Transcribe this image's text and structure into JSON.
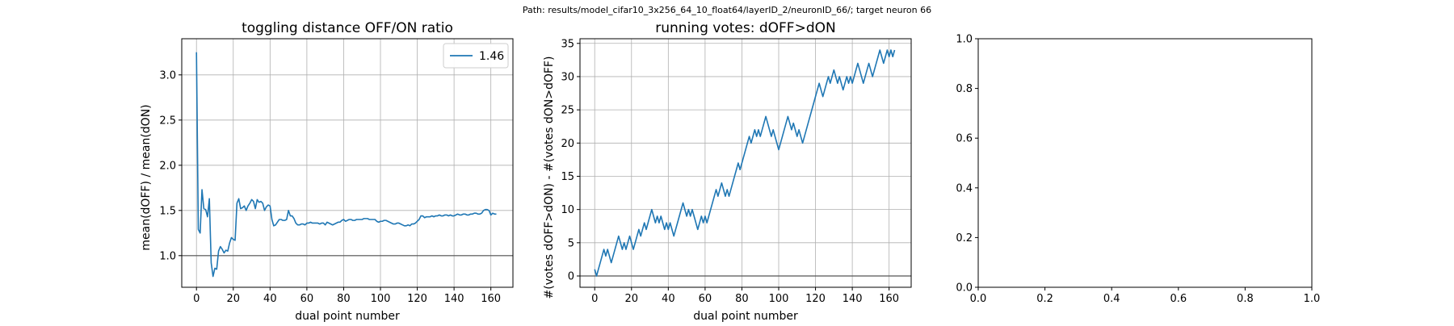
{
  "figure": {
    "suptitle": "Path: results/model_cifar10_3x256_64_10_float64/layerID_2/neuronID_66/; target neuron 66"
  },
  "chart_data": [
    {
      "type": "line",
      "title": "toggling distance OFF/ON ratio",
      "xlabel": "dual point number",
      "ylabel": "mean(dOFF) / mean(dON)",
      "xlim": [
        -8,
        172
      ],
      "ylim": [
        0.65,
        3.4
      ],
      "xticks": [
        0,
        20,
        40,
        60,
        80,
        100,
        120,
        140,
        160
      ],
      "yticks": [
        1.0,
        1.5,
        2.0,
        2.5,
        3.0
      ],
      "ytick_labels": [
        "1.0",
        "1.5",
        "2.0",
        "2.5",
        "3.0"
      ],
      "grid": true,
      "legend_position": "top-right",
      "reference_line": 1.0,
      "series": [
        {
          "name": "1.46",
          "color": "#1f77b4",
          "x": [
            0,
            1,
            2,
            3,
            4,
            5,
            6,
            7,
            8,
            9,
            10,
            11,
            12,
            13,
            14,
            15,
            16,
            17,
            18,
            19,
            20,
            21,
            22,
            23,
            24,
            25,
            26,
            27,
            28,
            29,
            30,
            31,
            32,
            33,
            34,
            35,
            36,
            37,
            38,
            39,
            40,
            41,
            42,
            43,
            44,
            45,
            46,
            47,
            48,
            49,
            50,
            51,
            52,
            53,
            54,
            55,
            56,
            57,
            58,
            59,
            60,
            61,
            62,
            63,
            64,
            65,
            66,
            67,
            68,
            69,
            70,
            71,
            72,
            73,
            74,
            75,
            76,
            77,
            78,
            79,
            80,
            81,
            82,
            83,
            84,
            85,
            86,
            87,
            88,
            89,
            90,
            91,
            92,
            93,
            94,
            95,
            96,
            97,
            98,
            99,
            100,
            101,
            102,
            103,
            104,
            105,
            106,
            107,
            108,
            109,
            110,
            111,
            112,
            113,
            114,
            115,
            116,
            117,
            118,
            119,
            120,
            121,
            122,
            123,
            124,
            125,
            126,
            127,
            128,
            129,
            130,
            131,
            132,
            133,
            134,
            135,
            136,
            137,
            138,
            139,
            140,
            141,
            142,
            143,
            144,
            145,
            146,
            147,
            148,
            149,
            150,
            151,
            152,
            153,
            154,
            155,
            156,
            157,
            158,
            159,
            160,
            161,
            162,
            163
          ],
          "y": [
            3.25,
            1.29,
            1.25,
            1.73,
            1.52,
            1.51,
            1.43,
            1.63,
            0.92,
            0.77,
            0.86,
            0.85,
            1.05,
            1.1,
            1.07,
            1.03,
            1.06,
            1.05,
            1.14,
            1.2,
            1.18,
            1.17,
            1.58,
            1.63,
            1.52,
            1.53,
            1.55,
            1.5,
            1.55,
            1.58,
            1.62,
            1.6,
            1.52,
            1.62,
            1.59,
            1.6,
            1.58,
            1.5,
            1.54,
            1.56,
            1.55,
            1.4,
            1.33,
            1.34,
            1.37,
            1.4,
            1.4,
            1.39,
            1.39,
            1.4,
            1.5,
            1.44,
            1.44,
            1.41,
            1.36,
            1.34,
            1.34,
            1.35,
            1.35,
            1.34,
            1.36,
            1.36,
            1.37,
            1.36,
            1.36,
            1.36,
            1.36,
            1.35,
            1.36,
            1.36,
            1.34,
            1.37,
            1.36,
            1.35,
            1.34,
            1.35,
            1.36,
            1.37,
            1.37,
            1.39,
            1.4,
            1.38,
            1.39,
            1.4,
            1.4,
            1.39,
            1.39,
            1.4,
            1.4,
            1.4,
            1.4,
            1.41,
            1.41,
            1.41,
            1.4,
            1.4,
            1.4,
            1.4,
            1.38,
            1.37,
            1.38,
            1.38,
            1.39,
            1.39,
            1.38,
            1.37,
            1.36,
            1.35,
            1.35,
            1.36,
            1.36,
            1.35,
            1.34,
            1.33,
            1.33,
            1.34,
            1.33,
            1.35,
            1.35,
            1.36,
            1.38,
            1.4,
            1.44,
            1.44,
            1.42,
            1.43,
            1.43,
            1.43,
            1.44,
            1.43,
            1.44,
            1.44,
            1.45,
            1.44,
            1.44,
            1.45,
            1.45,
            1.44,
            1.45,
            1.44,
            1.44,
            1.45,
            1.46,
            1.45,
            1.45,
            1.46,
            1.46,
            1.45,
            1.45,
            1.46,
            1.46,
            1.47,
            1.47,
            1.46,
            1.46,
            1.47,
            1.5,
            1.51,
            1.51,
            1.5,
            1.45,
            1.47,
            1.46,
            1.46
          ]
        }
      ]
    },
    {
      "type": "line",
      "title": "running votes: dOFF>dON",
      "xlabel": "dual point number",
      "ylabel": "#(votes dOFF>dON) - #(votes dON>dOFF)",
      "xlim": [
        -8,
        172
      ],
      "ylim": [
        -1.7,
        35.7
      ],
      "xticks": [
        0,
        20,
        40,
        60,
        80,
        100,
        120,
        140,
        160
      ],
      "yticks": [
        0,
        5,
        10,
        15,
        20,
        25,
        30,
        35
      ],
      "ytick_labels": [
        "0",
        "5",
        "10",
        "15",
        "20",
        "25",
        "30",
        "35"
      ],
      "grid": true,
      "reference_line": 0,
      "series": [
        {
          "color": "#1f77b4",
          "x": [
            0,
            1,
            2,
            3,
            4,
            5,
            6,
            7,
            8,
            9,
            10,
            11,
            12,
            13,
            14,
            15,
            16,
            17,
            18,
            19,
            20,
            21,
            22,
            23,
            24,
            25,
            26,
            27,
            28,
            29,
            30,
            31,
            32,
            33,
            34,
            35,
            36,
            37,
            38,
            39,
            40,
            41,
            42,
            43,
            44,
            45,
            46,
            47,
            48,
            49,
            50,
            51,
            52,
            53,
            54,
            55,
            56,
            57,
            58,
            59,
            60,
            61,
            62,
            63,
            64,
            65,
            66,
            67,
            68,
            69,
            70,
            71,
            72,
            73,
            74,
            75,
            76,
            77,
            78,
            79,
            80,
            81,
            82,
            83,
            84,
            85,
            86,
            87,
            88,
            89,
            90,
            91,
            92,
            93,
            94,
            95,
            96,
            97,
            98,
            99,
            100,
            101,
            102,
            103,
            104,
            105,
            106,
            107,
            108,
            109,
            110,
            111,
            112,
            113,
            114,
            115,
            116,
            117,
            118,
            119,
            120,
            121,
            122,
            123,
            124,
            125,
            126,
            127,
            128,
            129,
            130,
            131,
            132,
            133,
            134,
            135,
            136,
            137,
            138,
            139,
            140,
            141,
            142,
            143,
            144,
            145,
            146,
            147,
            148,
            149,
            150,
            151,
            152,
            153,
            154,
            155,
            156,
            157,
            158,
            159,
            160,
            161,
            162,
            163
          ],
          "y": [
            1,
            0,
            1,
            2,
            3,
            4,
            3,
            4,
            3,
            2,
            3,
            4,
            5,
            6,
            5,
            4,
            5,
            4,
            5,
            6,
            5,
            4,
            5,
            6,
            7,
            6,
            7,
            8,
            7,
            8,
            9,
            10,
            9,
            8,
            9,
            8,
            9,
            8,
            7,
            8,
            7,
            8,
            7,
            6,
            7,
            8,
            9,
            10,
            11,
            10,
            9,
            10,
            9,
            10,
            9,
            8,
            7,
            8,
            9,
            8,
            9,
            8,
            9,
            10,
            11,
            12,
            13,
            12,
            13,
            14,
            13,
            12,
            13,
            12,
            13,
            14,
            15,
            16,
            17,
            16,
            17,
            18,
            19,
            20,
            21,
            20,
            21,
            22,
            21,
            22,
            21,
            22,
            23,
            24,
            23,
            22,
            21,
            22,
            21,
            20,
            19,
            20,
            21,
            22,
            23,
            24,
            23,
            22,
            23,
            22,
            21,
            22,
            21,
            20,
            21,
            22,
            23,
            24,
            25,
            26,
            27,
            28,
            29,
            28,
            27,
            28,
            29,
            30,
            29,
            30,
            31,
            30,
            29,
            30,
            29,
            28,
            29,
            30,
            29,
            30,
            29,
            30,
            31,
            32,
            31,
            30,
            29,
            30,
            31,
            32,
            31,
            30,
            31,
            32,
            33,
            34,
            33,
            32,
            33,
            34,
            33,
            34,
            33,
            34
          ]
        }
      ]
    },
    {
      "type": "line",
      "title": "",
      "xlabel": "",
      "ylabel": "",
      "xlim": [
        0,
        1
      ],
      "ylim": [
        0,
        1
      ],
      "xticks": [
        0,
        0.2,
        0.4,
        0.6,
        0.8,
        1.0
      ],
      "xtick_labels": [
        "0.0",
        "0.2",
        "0.4",
        "0.6",
        "0.8",
        "1.0"
      ],
      "yticks": [
        0,
        0.2,
        0.4,
        0.6,
        0.8,
        1.0
      ],
      "ytick_labels": [
        "0.0",
        "0.2",
        "0.4",
        "0.6",
        "0.8",
        "1.0"
      ],
      "grid": false,
      "series": []
    }
  ]
}
